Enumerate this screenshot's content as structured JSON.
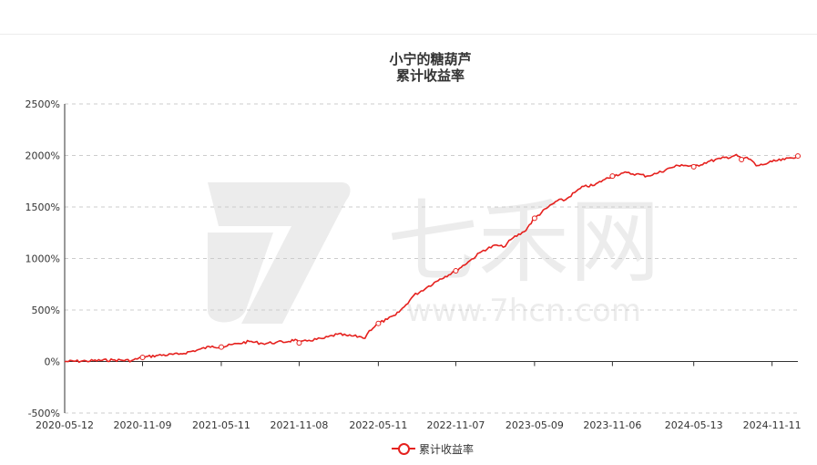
{
  "chart_data": {
    "type": "line",
    "title": "小宁的糖葫芦",
    "subtitle": "累计收益率",
    "ylim": [
      -500,
      2500
    ],
    "yticks": [
      -500,
      0,
      500,
      1000,
      1500,
      2000,
      2500
    ],
    "ytick_labels": [
      "-500%",
      "0%",
      "500%",
      "1000%",
      "1500%",
      "2000%",
      "2500%"
    ],
    "xlim": [
      "2020-05-12",
      "2025-01-10"
    ],
    "x_tick_labels": [
      "2020-05-12",
      "2020-11-09",
      "2021-05-11",
      "2021-11-08",
      "2022-05-11",
      "2022-11-07",
      "2023-05-09",
      "2023-11-06",
      "2024-05-13",
      "2024-11-11"
    ],
    "grid": "horizontal dashed",
    "legend": "bottom-center",
    "series": [
      {
        "name": "累计收益率",
        "color": "#e5211e",
        "points": [
          [
            "2020-05-12",
            0
          ],
          [
            "2020-07-01",
            5
          ],
          [
            "2020-09-01",
            15
          ],
          [
            "2020-10-15",
            10
          ],
          [
            "2020-11-09",
            40
          ],
          [
            "2020-12-15",
            60
          ],
          [
            "2021-02-01",
            70
          ],
          [
            "2021-03-15",
            110
          ],
          [
            "2021-04-20",
            150
          ],
          [
            "2021-05-11",
            140
          ],
          [
            "2021-06-20",
            175
          ],
          [
            "2021-07-15",
            195
          ],
          [
            "2021-08-15",
            175
          ],
          [
            "2021-09-15",
            185
          ],
          [
            "2021-10-15",
            195
          ],
          [
            "2021-10-30",
            215
          ],
          [
            "2021-11-08",
            180
          ],
          [
            "2021-12-01",
            205
          ],
          [
            "2022-01-05",
            225
          ],
          [
            "2022-02-05",
            265
          ],
          [
            "2022-03-01",
            250
          ],
          [
            "2022-04-01",
            240
          ],
          [
            "2022-04-10",
            225
          ],
          [
            "2022-04-20",
            300
          ],
          [
            "2022-05-11",
            370
          ],
          [
            "2022-06-01",
            410
          ],
          [
            "2022-06-20",
            450
          ],
          [
            "2022-07-10",
            530
          ],
          [
            "2022-08-01",
            640
          ],
          [
            "2022-09-01",
            720
          ],
          [
            "2022-10-01",
            800
          ],
          [
            "2022-11-07",
            880
          ],
          [
            "2022-12-10",
            980
          ],
          [
            "2023-01-10",
            1080
          ],
          [
            "2023-02-10",
            1130
          ],
          [
            "2023-02-25",
            1110
          ],
          [
            "2023-03-20",
            1200
          ],
          [
            "2023-04-15",
            1260
          ],
          [
            "2023-05-09",
            1390
          ],
          [
            "2023-06-10",
            1500
          ],
          [
            "2023-07-01",
            1560
          ],
          [
            "2023-07-20",
            1570
          ],
          [
            "2023-08-10",
            1640
          ],
          [
            "2023-09-01",
            1700
          ],
          [
            "2023-09-25",
            1710
          ],
          [
            "2023-10-15",
            1760
          ],
          [
            "2023-11-06",
            1800
          ],
          [
            "2023-12-01",
            1830
          ],
          [
            "2024-01-01",
            1820
          ],
          [
            "2024-01-25",
            1800
          ],
          [
            "2024-02-20",
            1830
          ],
          [
            "2024-03-20",
            1880
          ],
          [
            "2024-04-15",
            1910
          ],
          [
            "2024-05-13",
            1890
          ],
          [
            "2024-06-15",
            1940
          ],
          [
            "2024-07-15",
            1970
          ],
          [
            "2024-08-10",
            1990
          ],
          [
            "2024-08-20",
            2010
          ],
          [
            "2024-09-01",
            1960
          ],
          [
            "2024-09-10",
            1980
          ],
          [
            "2024-09-25",
            1950
          ],
          [
            "2024-10-05",
            1900
          ],
          [
            "2024-10-20",
            1910
          ],
          [
            "2024-11-11",
            1940
          ],
          [
            "2024-12-10",
            1960
          ],
          [
            "2025-01-10",
            1995
          ]
        ]
      }
    ],
    "markers": [
      [
        "2020-11-09",
        40
      ],
      [
        "2021-05-11",
        140
      ],
      [
        "2021-11-08",
        180
      ],
      [
        "2022-05-11",
        370
      ],
      [
        "2022-11-07",
        880
      ],
      [
        "2023-05-09",
        1390
      ],
      [
        "2023-11-06",
        1800
      ],
      [
        "2024-05-13",
        1890
      ],
      [
        "2024-09-01",
        1960
      ],
      [
        "2025-01-10",
        1995
      ]
    ]
  },
  "legend_label": "累计收益率",
  "watermark": {
    "brand": "七禾网",
    "site": "www.7hcn.com"
  }
}
